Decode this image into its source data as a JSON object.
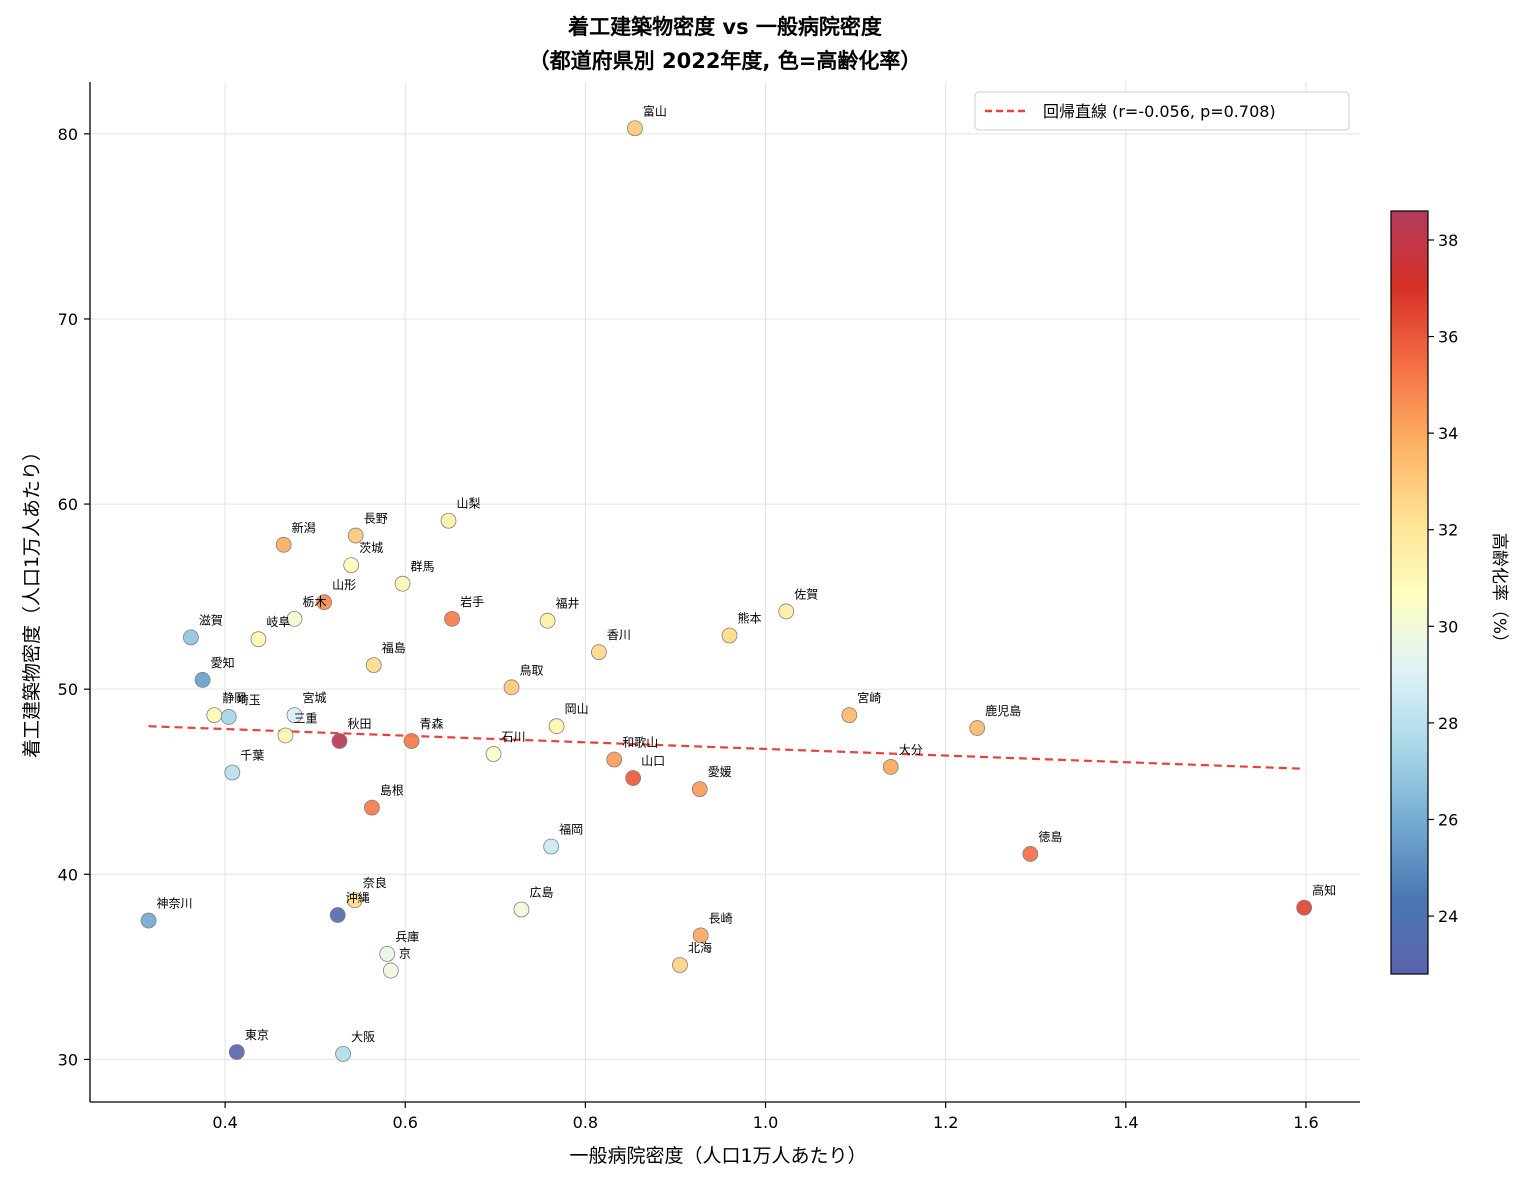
{
  "chart_data": {
    "type": "scatter",
    "title_line1": "着工建築物密度 vs 一般病院密度",
    "title_line2": "（都道府県別 2022年度, 色=高齢化率）",
    "xlabel": "一般病院密度（人口1万人あたり）",
    "ylabel": "着工建築物密度（人口1万人あたり）",
    "xlim": [
      0.25,
      1.66
    ],
    "ylim": [
      27.7,
      82.8
    ],
    "xticks": [
      0.4,
      0.6,
      0.8,
      1.0,
      1.2,
      1.4,
      1.6
    ],
    "xtick_labels": [
      "0.4",
      "0.6",
      "0.8",
      "1.0",
      "1.2",
      "1.4",
      "1.6"
    ],
    "yticks": [
      30,
      40,
      50,
      60,
      70,
      80
    ],
    "ytick_labels": [
      "30",
      "40",
      "50",
      "60",
      "70",
      "80"
    ],
    "grid": true,
    "legend_position": "top-right",
    "regression": {
      "label": "回帰直線 (r=-0.056, p=0.708)",
      "x": [
        0.315,
        1.598
      ],
      "y": [
        48.0,
        45.7
      ],
      "color": "#e8413c"
    },
    "colorbar": {
      "label": "高齢化率（%）",
      "min": 22.8,
      "max": 38.6,
      "ticks": [
        24,
        26,
        28,
        30,
        32,
        34,
        36,
        38
      ],
      "tick_labels": [
        "24",
        "26",
        "28",
        "30",
        "32",
        "34",
        "36",
        "38"
      ],
      "colormap": "RdYlBu_r"
    },
    "points": [
      {
        "label": "富山",
        "x": 0.855,
        "y": 80.3,
        "c": 33.0
      },
      {
        "label": "山梨",
        "x": 0.648,
        "y": 59.1,
        "c": 31.5
      },
      {
        "label": "長野",
        "x": 0.545,
        "y": 58.3,
        "c": 33.0
      },
      {
        "label": "新潟",
        "x": 0.465,
        "y": 57.8,
        "c": 33.9
      },
      {
        "label": "茨城",
        "x": 0.54,
        "y": 56.7,
        "c": 30.9
      },
      {
        "label": "群馬",
        "x": 0.597,
        "y": 55.7,
        "c": 31.1
      },
      {
        "label": "山形",
        "x": 0.51,
        "y": 54.7,
        "c": 34.7
      },
      {
        "label": "栃木",
        "x": 0.477,
        "y": 53.8,
        "c": 30.1
      },
      {
        "label": "岩手",
        "x": 0.652,
        "y": 53.8,
        "c": 35.1
      },
      {
        "label": "福井",
        "x": 0.758,
        "y": 53.7,
        "c": 31.5
      },
      {
        "label": "佐賀",
        "x": 1.023,
        "y": 54.2,
        "c": 31.6
      },
      {
        "label": "熊本",
        "x": 0.96,
        "y": 52.9,
        "c": 32.5
      },
      {
        "label": "滋賀",
        "x": 0.362,
        "y": 52.8,
        "c": 26.8
      },
      {
        "label": "岐阜",
        "x": 0.437,
        "y": 52.7,
        "c": 31.1
      },
      {
        "label": "香川",
        "x": 0.815,
        "y": 52.0,
        "c": 32.5
      },
      {
        "label": "福島",
        "x": 0.565,
        "y": 51.3,
        "c": 32.4
      },
      {
        "label": "愛知",
        "x": 0.375,
        "y": 50.5,
        "c": 25.6
      },
      {
        "label": "鳥取",
        "x": 0.718,
        "y": 50.1,
        "c": 33.0
      },
      {
        "label": "静岡",
        "x": 0.388,
        "y": 48.6,
        "c": 31.0
      },
      {
        "label": "埼玉",
        "x": 0.404,
        "y": 48.5,
        "c": 27.4
      },
      {
        "label": "宮城",
        "x": 0.477,
        "y": 48.6,
        "c": 28.9
      },
      {
        "label": "宮崎",
        "x": 1.093,
        "y": 48.6,
        "c": 33.5
      },
      {
        "label": "岡山",
        "x": 0.768,
        "y": 48.0,
        "c": 31.2
      },
      {
        "label": "鹿児島",
        "x": 1.235,
        "y": 47.9,
        "c": 33.5
      },
      {
        "label": "三重",
        "x": 0.467,
        "y": 47.5,
        "c": 31.2
      },
      {
        "label": "秋田",
        "x": 0.527,
        "y": 47.2,
        "c": 38.4
      },
      {
        "label": "青森",
        "x": 0.607,
        "y": 47.2,
        "c": 35.2
      },
      {
        "label": "石川",
        "x": 0.698,
        "y": 46.5,
        "c": 30.5
      },
      {
        "label": "和歌山",
        "x": 0.832,
        "y": 46.2,
        "c": 34.3
      },
      {
        "label": "大分",
        "x": 1.139,
        "y": 45.8,
        "c": 34.0
      },
      {
        "label": "千葉",
        "x": 0.408,
        "y": 45.5,
        "c": 27.9
      },
      {
        "label": "山口",
        "x": 0.853,
        "y": 45.2,
        "c": 35.9
      },
      {
        "label": "愛媛",
        "x": 0.927,
        "y": 44.6,
        "c": 34.3
      },
      {
        "label": "島根",
        "x": 0.563,
        "y": 43.6,
        "c": 35.1
      },
      {
        "label": "福岡",
        "x": 0.762,
        "y": 41.5,
        "c": 28.5
      },
      {
        "label": "徳島",
        "x": 1.294,
        "y": 41.1,
        "c": 35.4
      },
      {
        "label": "高知",
        "x": 1.598,
        "y": 38.2,
        "c": 36.5
      },
      {
        "label": "奈良",
        "x": 0.544,
        "y": 38.6,
        "c": 32.4
      },
      {
        "label": "広島",
        "x": 0.729,
        "y": 38.1,
        "c": 30.0
      },
      {
        "label": "沖縄",
        "x": 0.525,
        "y": 37.8,
        "c": 23.3
      },
      {
        "label": "神奈川",
        "x": 0.315,
        "y": 37.5,
        "c": 25.9
      },
      {
        "label": "長崎",
        "x": 0.928,
        "y": 36.7,
        "c": 34.0
      },
      {
        "label": "兵庫",
        "x": 0.58,
        "y": 35.7,
        "c": 29.6
      },
      {
        "label": "京",
        "x": 0.584,
        "y": 34.8,
        "c": 29.9
      },
      {
        "label": "北海",
        "x": 0.905,
        "y": 35.1,
        "c": 32.7
      },
      {
        "label": "東京",
        "x": 0.413,
        "y": 30.4,
        "c": 23.0
      },
      {
        "label": "大阪",
        "x": 0.531,
        "y": 30.3,
        "c": 27.8
      }
    ]
  }
}
